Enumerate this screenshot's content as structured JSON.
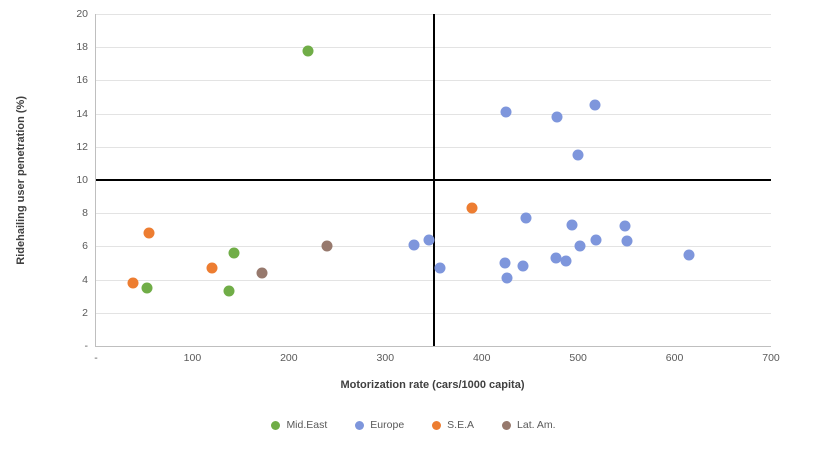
{
  "chart_data": {
    "type": "scatter",
    "title": "",
    "xlabel": "Motorization rate (cars/1000 capita)",
    "ylabel": "Ridehailing user penetration (%)",
    "xlim": [
      0,
      700
    ],
    "ylim": [
      0,
      20
    ],
    "x_ticks": [
      0,
      100,
      200,
      300,
      400,
      500,
      600,
      700
    ],
    "x_tick_labels": [
      "-",
      "100",
      "200",
      "300",
      "400",
      "500",
      "600",
      "700"
    ],
    "y_ticks": [
      0,
      2,
      4,
      6,
      8,
      10,
      12,
      14,
      16,
      18,
      20
    ],
    "y_tick_labels": [
      "-",
      "2",
      "4",
      "6",
      "8",
      "10",
      "12",
      "14",
      "16",
      "18",
      "20"
    ],
    "gridlines": "horizontal",
    "legend_position": "bottom",
    "quadrant_lines": {
      "vertical_x": 350,
      "horizontal_y": 10
    },
    "series": [
      {
        "name": "Mid.East",
        "color": "#70AD47",
        "points": [
          [
            53,
            3.5
          ],
          [
            138,
            3.3
          ],
          [
            143,
            5.6
          ],
          [
            220,
            17.8
          ]
        ]
      },
      {
        "name": "Europe",
        "color": "#7E96DC",
        "points": [
          [
            330,
            6.1
          ],
          [
            345,
            6.4
          ],
          [
            357,
            4.7
          ],
          [
            425,
            14.1
          ],
          [
            424,
            5.0
          ],
          [
            426,
            4.1
          ],
          [
            443,
            4.8
          ],
          [
            446,
            7.7
          ],
          [
            478,
            13.8
          ],
          [
            477,
            5.3
          ],
          [
            487,
            5.1
          ],
          [
            494,
            7.3
          ],
          [
            500,
            11.5
          ],
          [
            502,
            6.0
          ],
          [
            517,
            14.5
          ],
          [
            518,
            6.4
          ],
          [
            549,
            7.2
          ],
          [
            551,
            6.3
          ],
          [
            615,
            5.5
          ]
        ]
      },
      {
        "name": "S.E.A",
        "color": "#ED7D31",
        "points": [
          [
            38,
            3.8
          ],
          [
            55,
            6.8
          ],
          [
            120,
            4.7
          ],
          [
            390,
            8.3
          ]
        ]
      },
      {
        "name": "Lat. Am.",
        "color": "#97796D",
        "points": [
          [
            172,
            4.4
          ],
          [
            240,
            6.0
          ]
        ]
      }
    ]
  }
}
